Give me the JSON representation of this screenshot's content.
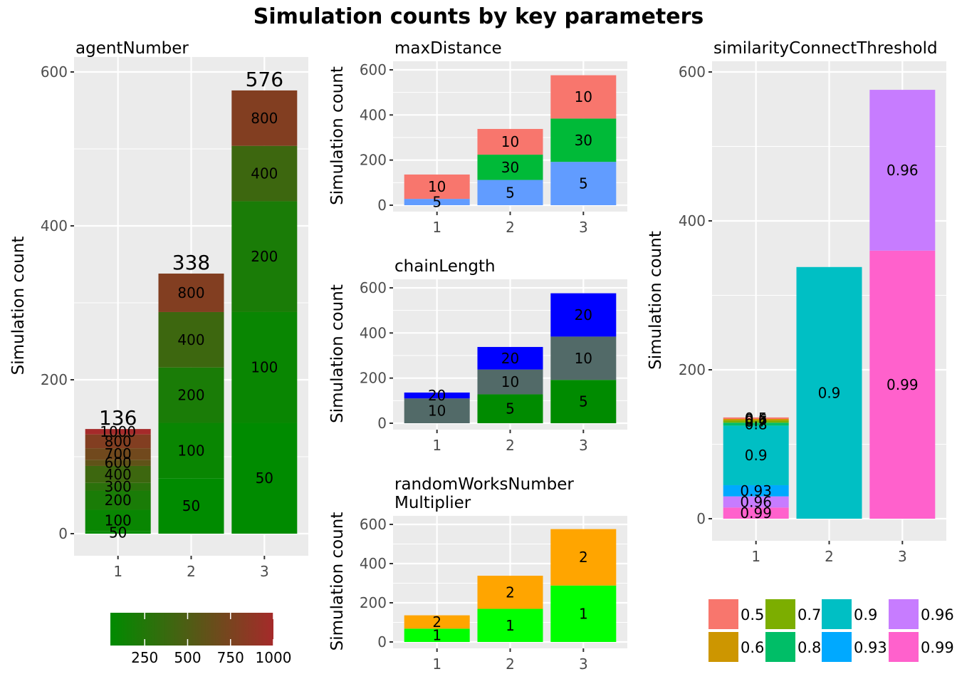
{
  "title": "Simulation counts by key parameters",
  "chart_data": [
    {
      "id": "agentNumber",
      "type": "bar",
      "stacked": true,
      "title": "agentNumber",
      "ylabel": "Simulation count",
      "xlabel": "",
      "categories": [
        "1",
        "2",
        "3"
      ],
      "ylim": [
        0,
        600
      ],
      "yticks": [
        0,
        200,
        400,
        600
      ],
      "grid": true,
      "totals": [
        136,
        338,
        576
      ],
      "series": [
        {
          "name": "50",
          "values": [
            3,
            72,
            144
          ]
        },
        {
          "name": "100",
          "values": [
            28,
            72,
            144
          ]
        },
        {
          "name": "200",
          "values": [
            25,
            72,
            144
          ]
        },
        {
          "name": "300",
          "values": [
            10,
            0,
            0
          ]
        },
        {
          "name": "400",
          "values": [
            22,
            72,
            72
          ]
        },
        {
          "name": "600",
          "values": [
            8,
            0,
            0
          ]
        },
        {
          "name": "700",
          "values": [
            15,
            0,
            0
          ]
        },
        {
          "name": "800",
          "values": [
            18,
            50,
            72
          ]
        },
        {
          "name": "1000",
          "values": [
            7,
            0,
            0
          ]
        }
      ],
      "color_scale": {
        "low": "#008b00",
        "high": "#a52a2a",
        "domain": [
          50,
          1000
        ],
        "ticks": [
          "250",
          "500",
          "750",
          "1000"
        ],
        "placement": "bottom"
      }
    },
    {
      "id": "maxDistance",
      "type": "bar",
      "stacked": true,
      "title": "maxDistance",
      "ylabel": "Simulation count",
      "categories": [
        "1",
        "2",
        "3"
      ],
      "ylim": [
        0,
        600
      ],
      "yticks": [
        0,
        200,
        400,
        600
      ],
      "grid": true,
      "series": [
        {
          "name": "5",
          "color": "#619cff",
          "values": [
            28,
            112,
            192
          ]
        },
        {
          "name": "30",
          "color": "#00ba38",
          "values": [
            0,
            112,
            192
          ]
        },
        {
          "name": "10",
          "color": "#f8766d",
          "values": [
            108,
            114,
            192
          ]
        }
      ]
    },
    {
      "id": "chainLength",
      "type": "bar",
      "stacked": true,
      "title": "chainLength",
      "ylabel": "Simulation count",
      "categories": [
        "1",
        "2",
        "3"
      ],
      "ylim": [
        0,
        600
      ],
      "yticks": [
        0,
        200,
        400,
        600
      ],
      "grid": true,
      "series": [
        {
          "name": "5",
          "color": "#008b00",
          "values": [
            0,
            128,
            192
          ]
        },
        {
          "name": "10",
          "color": "#526a68",
          "values": [
            110,
            110,
            192
          ]
        },
        {
          "name": "20",
          "color": "#0000ff",
          "values": [
            26,
            100,
            192
          ]
        }
      ]
    },
    {
      "id": "randomWorksNumberMultiplier",
      "type": "bar",
      "stacked": true,
      "title": [
        "randomWorksNumber",
        "Multiplier"
      ],
      "ylabel": "Simulation count",
      "categories": [
        "1",
        "2",
        "3"
      ],
      "ylim": [
        0,
        600
      ],
      "yticks": [
        0,
        200,
        400,
        600
      ],
      "grid": true,
      "series": [
        {
          "name": "1",
          "color": "#00ff00",
          "values": [
            68,
            169,
            288
          ]
        },
        {
          "name": "2",
          "color": "#ffa500",
          "values": [
            68,
            169,
            288
          ]
        }
      ]
    },
    {
      "id": "similarityConnectThreshold",
      "type": "bar",
      "stacked": true,
      "title": "similarityConnectThreshold",
      "ylabel": "Simulation count",
      "categories": [
        "1",
        "2",
        "3"
      ],
      "ylim": [
        0,
        600
      ],
      "yticks": [
        0,
        200,
        400,
        600
      ],
      "grid": true,
      "series": [
        {
          "name": "0.99",
          "color": "#ff61cc",
          "values": [
            15,
            0,
            360
          ]
        },
        {
          "name": "0.96",
          "color": "#c77cff",
          "values": [
            15,
            0,
            216
          ]
        },
        {
          "name": "0.93",
          "color": "#00a9ff",
          "values": [
            15,
            0,
            0
          ]
        },
        {
          "name": "0.9",
          "color": "#00bfc4",
          "values": [
            80,
            338,
            0
          ]
        },
        {
          "name": "0.8",
          "color": "#00be67",
          "values": [
            4,
            0,
            0
          ]
        },
        {
          "name": "0.7",
          "color": "#7cae00",
          "values": [
            3,
            0,
            0
          ]
        },
        {
          "name": "0.6",
          "color": "#cd9600",
          "values": [
            2,
            0,
            0
          ]
        },
        {
          "name": "0.5",
          "color": "#f8766d",
          "values": [
            2,
            0,
            0
          ]
        }
      ],
      "legend": {
        "placement": "bottom",
        "items": [
          {
            "label": "0.5",
            "color": "#f8766d"
          },
          {
            "label": "0.6",
            "color": "#cd9600"
          },
          {
            "label": "0.7",
            "color": "#7cae00"
          },
          {
            "label": "0.8",
            "color": "#00be67"
          },
          {
            "label": "0.9",
            "color": "#00bfc4"
          },
          {
            "label": "0.93",
            "color": "#00a9ff"
          },
          {
            "label": "0.96",
            "color": "#c77cff"
          },
          {
            "label": "0.99",
            "color": "#ff61cc"
          }
        ]
      }
    }
  ]
}
